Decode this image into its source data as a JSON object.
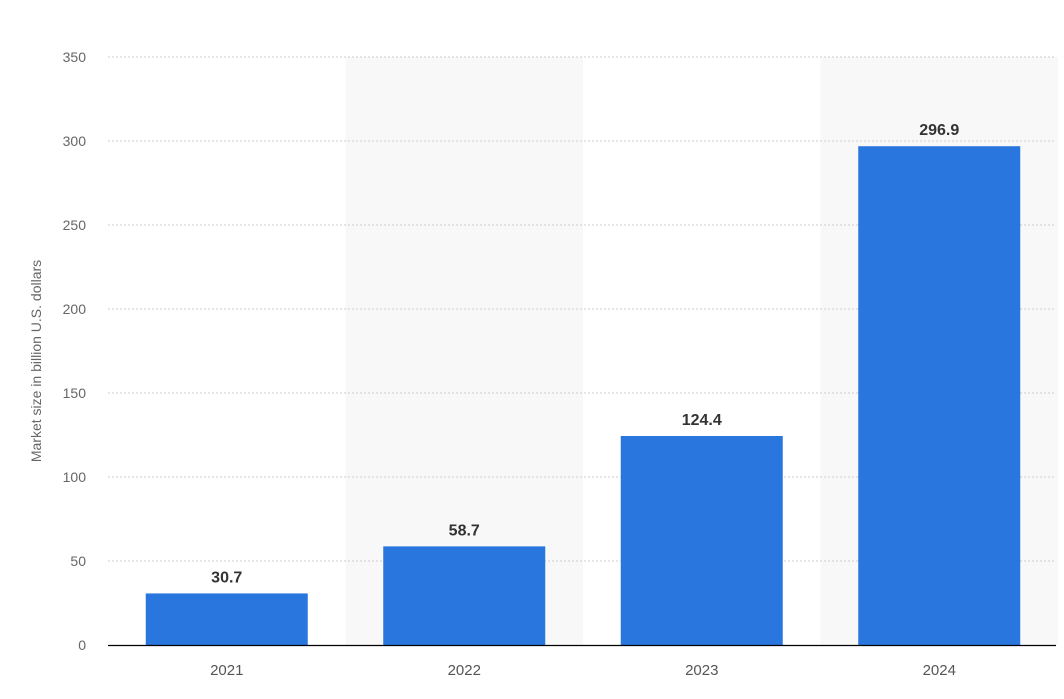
{
  "chart_data": {
    "type": "bar",
    "categories": [
      "2021",
      "2022",
      "2023",
      "2024"
    ],
    "values": [
      30.7,
      58.7,
      124.4,
      296.9
    ],
    "value_labels": [
      "30.7",
      "58.7",
      "124.4",
      "296.9"
    ],
    "ylabel": "Market size in billion U.S. dollars",
    "xlabel": "",
    "ylim": [
      0,
      350
    ],
    "yticks": [
      0,
      50,
      100,
      150,
      200,
      250,
      300,
      350
    ],
    "grid": true,
    "bar_color": "#2976de",
    "alt_band_color": "#f8f8f8",
    "grid_color": "#cccccc",
    "axis_color": "#000000"
  }
}
